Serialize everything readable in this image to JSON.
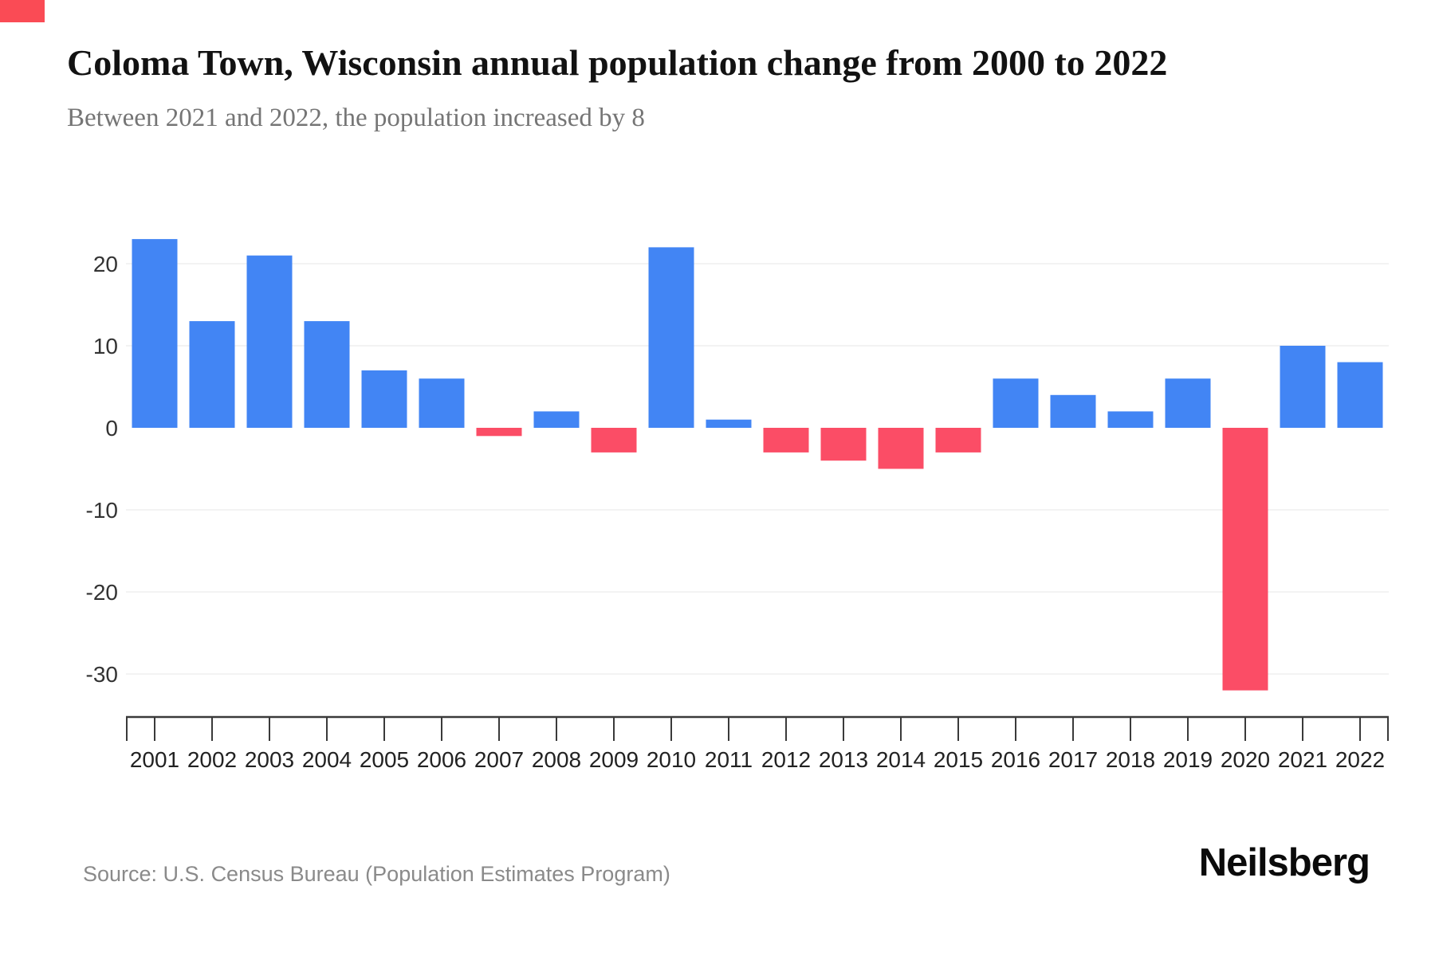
{
  "page": {
    "corner_marker_color": "#FA4B55"
  },
  "chart_data": {
    "type": "bar",
    "title": "Coloma Town, Wisconsin annual population change from 2000 to 2022",
    "subtitle": "Between 2021 and 2022, the population increased by 8",
    "categories": [
      "2001",
      "2002",
      "2003",
      "2004",
      "2005",
      "2006",
      "2007",
      "2008",
      "2009",
      "2010",
      "2011",
      "2012",
      "2013",
      "2014",
      "2015",
      "2016",
      "2017",
      "2018",
      "2019",
      "2020",
      "2021",
      "2022"
    ],
    "values": [
      23,
      13,
      21,
      13,
      7,
      6,
      -1,
      2,
      -3,
      22,
      1,
      -3,
      -4,
      -5,
      -3,
      6,
      4,
      2,
      6,
      -32,
      10,
      8
    ],
    "xlabel": "",
    "ylabel": "",
    "ylim": [
      -35,
      25
    ],
    "yticks": [
      20,
      10,
      0,
      -10,
      -20,
      -30
    ],
    "grid": true,
    "legend": false,
    "colors": {
      "positive": "#4285F4",
      "negative": "#FB4D66",
      "gridline": "#EFEFEF",
      "axis": "#3a3a3a",
      "tick_text": "#333333"
    },
    "source": "Source: U.S. Census Bureau (Population Estimates Program)"
  },
  "branding": {
    "logo_text": "Neilsberg"
  }
}
